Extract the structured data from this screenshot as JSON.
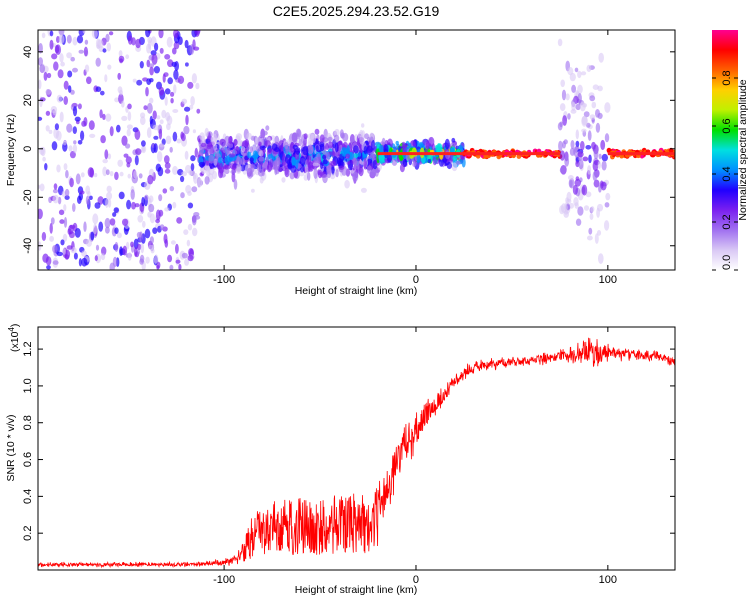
{
  "figure": {
    "title": "C2E5.2025.294.23.52.G19"
  },
  "chart_data": [
    {
      "type": "heatmap",
      "title": "C2E5.2025.294.23.52.G19",
      "xlabel": "Height of straight line (km)",
      "ylabel": "Frequency (Hz)",
      "xlim": [
        -197,
        135
      ],
      "ylim": [
        -50,
        49
      ],
      "x_ticks": [
        -100,
        0,
        100
      ],
      "y_ticks": [
        -40,
        -20,
        0,
        20,
        40
      ],
      "grid": false,
      "colorbar": {
        "label": "Normalized spectral amplitude",
        "range": [
          0.0,
          1.0
        ],
        "ticks": [
          0.0,
          0.2,
          0.4,
          0.6,
          0.8
        ],
        "tick_labels": [
          "0.0",
          "0.2",
          "0.4",
          "0.6",
          "0.8"
        ],
        "colormap": [
          "#ffffff",
          "#d9c8f5",
          "#a070f0",
          "#7a20f0",
          "#2000ff",
          "#0090ff",
          "#00e0e0",
          "#00e000",
          "#c0f000",
          "#ffd000",
          "#ff6000",
          "#ff0000",
          "#ff0090"
        ]
      },
      "regions": [
        {
          "x": [
            -197,
            -113
          ],
          "f_spread": 49,
          "amp": 0.25,
          "desc": "noise"
        },
        {
          "x": [
            -113,
            -20
          ],
          "f_center": -3,
          "f_spread": 9,
          "amp": 0.45
        },
        {
          "x": [
            -20,
            25
          ],
          "f_center": -2,
          "f_spread": 4,
          "amp": 0.75
        },
        {
          "x": [
            25,
            75
          ],
          "f_center": -2,
          "f_spread": 1.2,
          "amp": 1.0
        },
        {
          "x": [
            75,
            100
          ],
          "f_center": -2,
          "f_spread": 38,
          "amp": 0.3
        },
        {
          "x": [
            100,
            135
          ],
          "f_center": -2,
          "f_spread": 1.2,
          "amp": 1.0
        }
      ]
    },
    {
      "type": "line",
      "xlabel": "Height of straight line (km)",
      "ylabel": "SNR (10 * v/v)",
      "y_scale_note": "(x10",
      "y_scale_exp": "4",
      "y_scale_close": ")",
      "xlim": [
        -197,
        135
      ],
      "ylim": [
        0.0,
        1.32
      ],
      "x_ticks": [
        -100,
        0,
        100
      ],
      "y_ticks": [
        0.2,
        0.4,
        0.6,
        0.8,
        1.0,
        1.2
      ],
      "y_tick_labels": [
        "0.2",
        "0.4",
        "0.6",
        "0.8",
        "1.0",
        "1.2"
      ],
      "grid": false,
      "series": [
        {
          "color": "#ff0000",
          "x": [
            -197,
            -150,
            -115,
            -100,
            -92,
            -88,
            -85,
            -80,
            -70,
            -60,
            -50,
            -40,
            -30,
            -24,
            -20,
            -15,
            -10,
            -5,
            0,
            5,
            10,
            15,
            20,
            25,
            30,
            35,
            40,
            50,
            60,
            70,
            80,
            90,
            95,
            100,
            110,
            120,
            130,
            135
          ],
          "y": [
            0.03,
            0.03,
            0.03,
            0.04,
            0.07,
            0.15,
            0.22,
            0.25,
            0.28,
            0.28,
            0.27,
            0.3,
            0.3,
            0.28,
            0.36,
            0.45,
            0.6,
            0.68,
            0.74,
            0.84,
            0.9,
            0.95,
            1.02,
            1.07,
            1.1,
            1.11,
            1.12,
            1.13,
            1.14,
            1.15,
            1.17,
            1.18,
            1.16,
            1.18,
            1.17,
            1.16,
            1.15,
            1.13
          ],
          "noise": [
            0.01,
            0.01,
            0.01,
            0.015,
            0.03,
            0.08,
            0.12,
            0.13,
            0.14,
            0.15,
            0.16,
            0.18,
            0.2,
            0.2,
            0.14,
            0.12,
            0.1,
            0.09,
            0.08,
            0.07,
            0.05,
            0.04,
            0.03,
            0.03,
            0.025,
            0.025,
            0.025,
            0.025,
            0.025,
            0.025,
            0.03,
            0.06,
            0.07,
            0.04,
            0.025,
            0.025,
            0.025,
            0.025
          ]
        }
      ]
    }
  ]
}
